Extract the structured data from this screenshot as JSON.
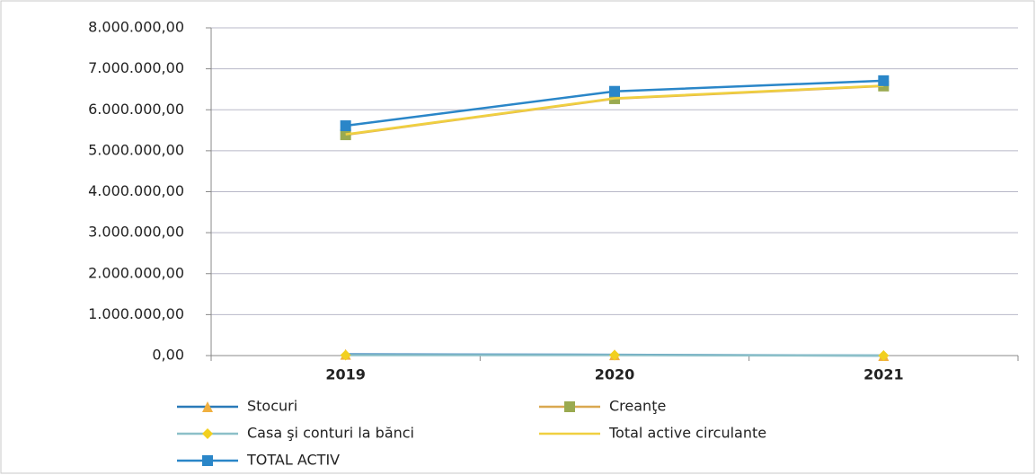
{
  "chart_data": {
    "type": "line",
    "categories": [
      "2019",
      "2020",
      "2021"
    ],
    "series": [
      {
        "name": "Stocuri",
        "color": "#2a7ab8",
        "marker": "triangle",
        "marker_color": "#f0b040",
        "values": [
          30000,
          20000,
          0
        ]
      },
      {
        "name": "Creanţe",
        "color": "#d9a850",
        "marker": "square",
        "marker_color": "#9aaa50",
        "values": [
          5390000,
          6270000,
          6580000
        ]
      },
      {
        "name": "Casa şi conturi la bănci",
        "color": "#8cc0c8",
        "marker": "diamond",
        "marker_color": "#f2d020",
        "values": [
          10000,
          10000,
          0
        ]
      },
      {
        "name": "Total active circulante",
        "color": "#f0d040",
        "values": [
          5400000,
          6280000,
          6590000
        ]
      },
      {
        "name": "TOTAL ACTIV",
        "color": "#2a86c8",
        "marker": "square",
        "marker_color": "#2a86c8",
        "values": [
          5610000,
          6450000,
          6710000
        ]
      }
    ],
    "ylim": [
      0,
      8000000
    ],
    "yticks": [
      {
        "value": 0,
        "label": "0,00"
      },
      {
        "value": 1000000,
        "label": "1.000.000,00"
      },
      {
        "value": 2000000,
        "label": "2.000.000,00"
      },
      {
        "value": 3000000,
        "label": "3.000.000,00"
      },
      {
        "value": 4000000,
        "label": "4.000.000,00"
      },
      {
        "value": 5000000,
        "label": "5.000.000,00"
      },
      {
        "value": 6000000,
        "label": "6.000.000,00"
      },
      {
        "value": 7000000,
        "label": "7.000.000,00"
      },
      {
        "value": 8000000,
        "label": "8.000.000,00"
      }
    ],
    "grid": true,
    "legend": "bottom"
  }
}
